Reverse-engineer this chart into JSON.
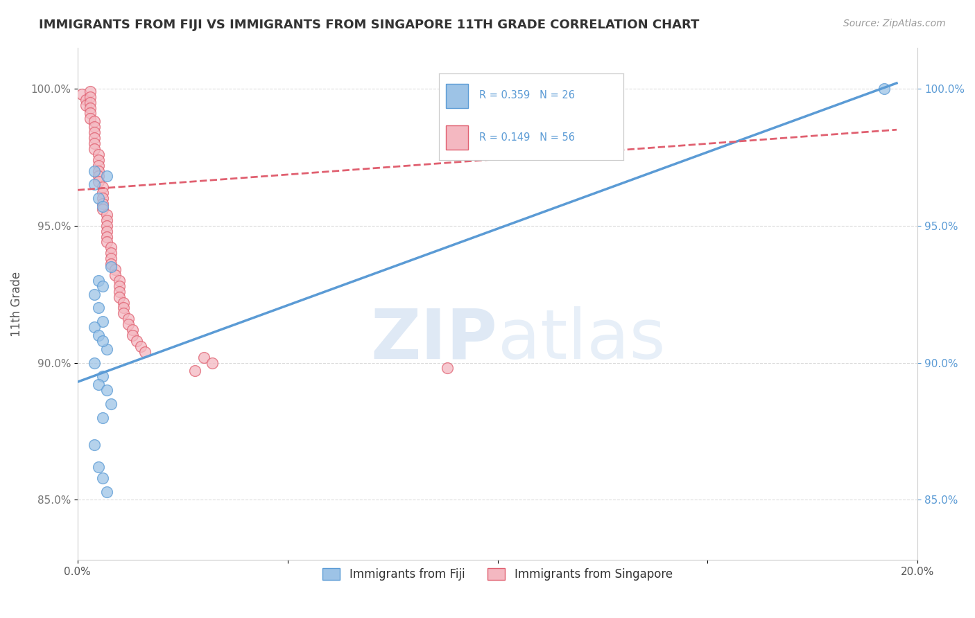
{
  "title": "IMMIGRANTS FROM FIJI VS IMMIGRANTS FROM SINGAPORE 11TH GRADE CORRELATION CHART",
  "source": "Source: ZipAtlas.com",
  "ylabel": "11th Grade",
  "watermark": "ZIPatlas",
  "x_min": 0.0,
  "x_max": 0.2,
  "y_min": 0.828,
  "y_max": 1.015,
  "y_ticks": [
    0.85,
    0.9,
    0.95,
    1.0
  ],
  "y_tick_labels": [
    "85.0%",
    "90.0%",
    "95.0%",
    "100.0%"
  ],
  "fiji_color": "#5b9bd5",
  "fiji_color_fill": "#9dc3e6",
  "singapore_color": "#e06070",
  "singapore_color_fill": "#f4b8c1",
  "fiji_R": 0.359,
  "fiji_N": 26,
  "singapore_R": 0.149,
  "singapore_N": 56,
  "fiji_line_x0": 0.0,
  "fiji_line_y0": 0.893,
  "fiji_line_x1": 0.195,
  "fiji_line_y1": 1.002,
  "sing_line_x0": 0.0,
  "sing_line_y0": 0.963,
  "sing_line_x1": 0.195,
  "sing_line_y1": 0.985,
  "fiji_x": [
    0.004,
    0.004,
    0.005,
    0.006,
    0.007,
    0.008,
    0.005,
    0.006,
    0.004,
    0.005,
    0.006,
    0.004,
    0.007,
    0.005,
    0.006,
    0.004,
    0.006,
    0.005,
    0.007,
    0.008,
    0.006,
    0.004,
    0.005,
    0.006,
    0.007,
    0.192
  ],
  "fiji_y": [
    0.97,
    0.965,
    0.96,
    0.957,
    0.968,
    0.935,
    0.93,
    0.928,
    0.925,
    0.92,
    0.915,
    0.913,
    0.905,
    0.91,
    0.908,
    0.9,
    0.895,
    0.892,
    0.89,
    0.885,
    0.88,
    0.87,
    0.862,
    0.858,
    0.853,
    1.0
  ],
  "singapore_x": [
    0.001,
    0.002,
    0.002,
    0.003,
    0.003,
    0.003,
    0.003,
    0.003,
    0.003,
    0.004,
    0.004,
    0.004,
    0.004,
    0.004,
    0.004,
    0.005,
    0.005,
    0.005,
    0.005,
    0.005,
    0.005,
    0.006,
    0.006,
    0.006,
    0.006,
    0.006,
    0.007,
    0.007,
    0.007,
    0.007,
    0.007,
    0.007,
    0.008,
    0.008,
    0.008,
    0.008,
    0.009,
    0.009,
    0.01,
    0.01,
    0.01,
    0.01,
    0.011,
    0.011,
    0.011,
    0.012,
    0.012,
    0.013,
    0.013,
    0.014,
    0.015,
    0.016,
    0.03,
    0.032,
    0.088,
    0.028
  ],
  "singapore_y": [
    0.998,
    0.996,
    0.994,
    0.999,
    0.997,
    0.995,
    0.993,
    0.991,
    0.989,
    0.988,
    0.986,
    0.984,
    0.982,
    0.98,
    0.978,
    0.976,
    0.974,
    0.972,
    0.97,
    0.968,
    0.966,
    0.964,
    0.962,
    0.96,
    0.958,
    0.956,
    0.954,
    0.952,
    0.95,
    0.948,
    0.946,
    0.944,
    0.942,
    0.94,
    0.938,
    0.936,
    0.934,
    0.932,
    0.93,
    0.928,
    0.926,
    0.924,
    0.922,
    0.92,
    0.918,
    0.916,
    0.914,
    0.912,
    0.91,
    0.908,
    0.906,
    0.904,
    0.902,
    0.9,
    0.898,
    0.897
  ]
}
